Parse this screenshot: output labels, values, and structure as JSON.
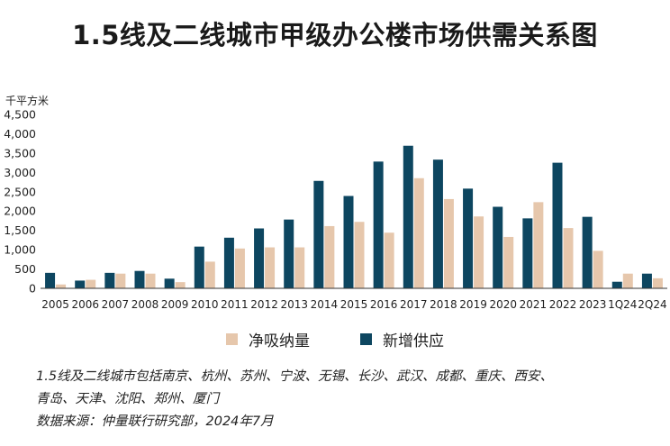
{
  "title": "1.5线及二线城市甲级办公楼市场供需关系图",
  "chart_data": {
    "type": "bar",
    "ylabel": "千平方米",
    "ylim": [
      0,
      4500
    ],
    "yticks": [
      "0",
      "500",
      "1,000",
      "1,500",
      "2,000",
      "2,500",
      "3,000",
      "3,500",
      "4,000",
      "4,500"
    ],
    "ytick_values": [
      0,
      500,
      1000,
      1500,
      2000,
      2500,
      3000,
      3500,
      4000,
      4500
    ],
    "categories": [
      "2005",
      "2006",
      "2007",
      "2008",
      "2009",
      "2010",
      "2011",
      "2012",
      "2013",
      "2014",
      "2015",
      "2016",
      "2017",
      "2018",
      "2019",
      "2020",
      "2021",
      "2022",
      "2023",
      "1Q24",
      "2Q24"
    ],
    "series": [
      {
        "name": "新增供应",
        "color": "#0d4660",
        "values": [
          400,
          200,
          400,
          450,
          250,
          1080,
          1310,
          1550,
          1780,
          2780,
          2390,
          3280,
          3690,
          3330,
          2580,
          2110,
          1810,
          3250,
          1850,
          170,
          380
        ]
      },
      {
        "name": "净吸纳量",
        "color": "#e6c7ac",
        "values": [
          100,
          220,
          380,
          380,
          160,
          690,
          1030,
          1060,
          1060,
          1610,
          1720,
          1440,
          2850,
          2310,
          1860,
          1330,
          2230,
          1560,
          970,
          380,
          260
        ]
      }
    ],
    "legend": {
      "position": "bottom",
      "items": [
        "净吸纳量",
        "新增供应"
      ]
    },
    "grid": false
  },
  "legend": {
    "absorption": "净吸纳量",
    "supply": "新增供应"
  },
  "notes": {
    "line1": "1.5线及二线城市包括南京、杭州、苏州、宁波、无锡、长沙、武汉、成都、重庆、西安、",
    "line2": "青岛、天津、沈阳、郑州、厦门",
    "line3": "数据来源：仲量联行研究部，2024年7月"
  }
}
